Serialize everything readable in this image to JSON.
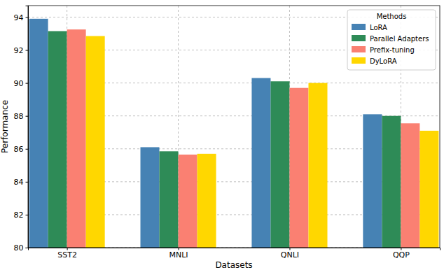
{
  "chart_data": {
    "type": "bar",
    "x_label": "Datasets",
    "y_label": "Performance",
    "categories": [
      "SST2",
      "MNLI",
      "QNLI",
      "QQP"
    ],
    "series": [
      {
        "name": "LoRA",
        "color": "#4682b4",
        "values": [
          93.9,
          86.1,
          90.3,
          88.1
        ]
      },
      {
        "name": "Parallel Adapters",
        "color": "#2e8b57",
        "values": [
          93.15,
          85.85,
          90.1,
          88.0
        ]
      },
      {
        "name": "Prefix-tuning",
        "color": "#fa8072",
        "values": [
          93.25,
          85.65,
          89.7,
          87.55
        ]
      },
      {
        "name": "DyLoRA",
        "color": "#ffd700",
        "values": [
          92.85,
          85.7,
          90.0,
          87.1
        ]
      }
    ],
    "ylim": [
      80,
      94.7
    ],
    "yticks": [
      80,
      82,
      84,
      86,
      88,
      90,
      92,
      94
    ],
    "grid": true,
    "legend": "upper-right",
    "legend_title": "Methods"
  }
}
